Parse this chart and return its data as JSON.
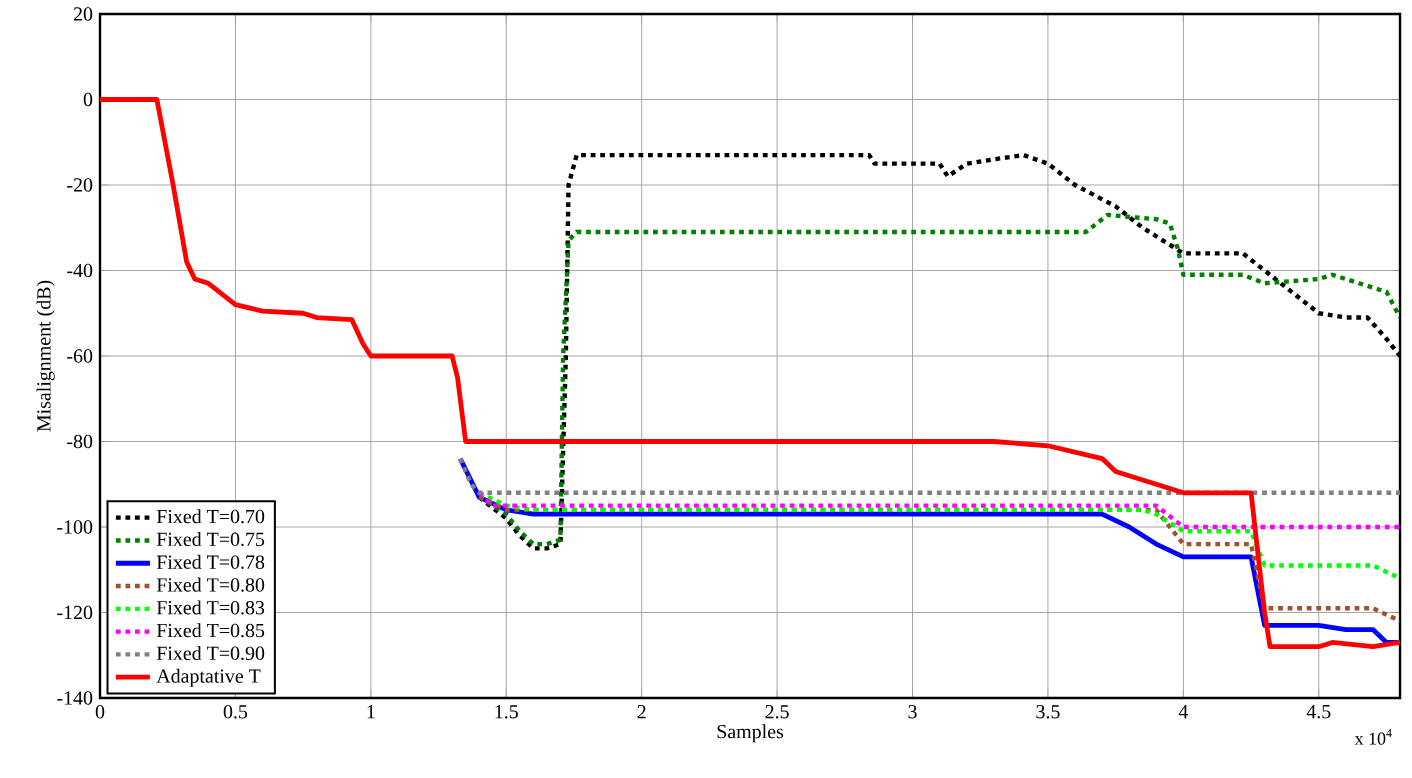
{
  "chart_data": {
    "type": "line",
    "xlabel": "Samples",
    "ylabel": "Misalignment (dB)",
    "annotations": [
      "x 10$^{4}$"
    ],
    "xlim": [
      0,
      4.8
    ],
    "ylim": [
      -140,
      20
    ],
    "xticks": [
      0,
      0.5,
      1,
      1.5,
      2,
      2.5,
      3,
      3.5,
      4,
      4.5
    ],
    "yticks": [
      -140,
      -120,
      -100,
      -80,
      -60,
      -40,
      -20,
      0,
      20
    ],
    "grid": true,
    "legend": "bottom left",
    "marker": "none",
    "series": [
      {
        "name": "Fixed T=0.70",
        "color": "#000000",
        "line_style": "dotted",
        "x": [
          1.4,
          1.5,
          1.55,
          1.6,
          1.65,
          1.7,
          1.72,
          1.73,
          1.76,
          2.84,
          2.86,
          3.1,
          3.13,
          3.2,
          3.3,
          3.41,
          3.5,
          3.6,
          3.75,
          3.85,
          4.0,
          4.22,
          4.3,
          4.4,
          4.5,
          4.6,
          4.68,
          4.75,
          4.8
        ],
        "values": [
          -93,
          -98,
          -102,
          -105,
          -105,
          -104,
          -60,
          -20,
          -13,
          -13,
          -15,
          -15,
          -18,
          -15,
          -14,
          -13,
          -15,
          -20,
          -25,
          -30,
          -36,
          -36,
          -40,
          -45,
          -50,
          -51,
          -51,
          -56,
          -60
        ]
      },
      {
        "name": "Fixed T=0.75",
        "color": "#008000",
        "line_style": "dotted",
        "x": [
          1.4,
          1.5,
          1.55,
          1.6,
          1.65,
          1.7,
          1.71,
          1.73,
          1.76,
          3.64,
          3.72,
          3.9,
          3.95,
          3.98,
          4.0,
          4.22,
          4.3,
          4.5,
          4.55,
          4.7,
          4.75,
          4.8
        ],
        "values": [
          -93,
          -97,
          -101,
          -104,
          -104,
          -103,
          -60,
          -33,
          -31,
          -31,
          -27,
          -28,
          -29,
          -35,
          -41,
          -41,
          -43,
          -42,
          -41,
          -44,
          -45,
          -51
        ]
      },
      {
        "name": "Fixed T=0.78",
        "color": "#0000ff",
        "line_style": "solid",
        "x": [
          1.33,
          1.4,
          1.5,
          1.6,
          3.7,
          3.8,
          3.9,
          4.0,
          4.25,
          4.3,
          4.5,
          4.6,
          4.7,
          4.75,
          4.8
        ],
        "values": [
          -84,
          -93,
          -96,
          -97,
          -97,
          -100,
          -104,
          -107,
          -107,
          -123,
          -123,
          -124,
          -124,
          -127,
          -127
        ]
      },
      {
        "name": "Fixed T=0.80",
        "color": "#a0522d",
        "line_style": "dotted",
        "x": [
          1.4,
          1.5,
          1.6,
          3.9,
          4.0,
          4.25,
          4.3,
          4.7,
          4.8
        ],
        "values": [
          -93,
          -96,
          -96,
          -96,
          -104,
          -104,
          -119,
          -119,
          -122
        ]
      },
      {
        "name": "Fixed T=0.83",
        "color": "#00ff00",
        "line_style": "dotted",
        "x": [
          1.4,
          1.5,
          1.6,
          3.85,
          3.9,
          4.0,
          4.25,
          4.3,
          4.7,
          4.8
        ],
        "values": [
          -92,
          -95,
          -96,
          -96,
          -97,
          -101,
          -101,
          -109,
          -109,
          -112
        ]
      },
      {
        "name": "Fixed T=0.85",
        "color": "#ff00ff",
        "line_style": "dotted",
        "x": [
          1.4,
          1.45,
          3.9,
          4.0,
          4.8
        ],
        "values": [
          -92,
          -95,
          -95,
          -100,
          -100
        ]
      },
      {
        "name": "Fixed T=0.90",
        "color": "#808080",
        "line_style": "dotted",
        "x": [
          1.33,
          1.37,
          1.4,
          4.8
        ],
        "values": [
          -84,
          -90,
          -92,
          -92
        ]
      },
      {
        "name": "Adaptative T",
        "color": "#ff0000",
        "line_style": "solid",
        "x": [
          0,
          0.21,
          0.27,
          0.32,
          0.35,
          0.4,
          0.5,
          0.6,
          0.75,
          0.8,
          0.93,
          0.97,
          1.0,
          1.3,
          1.32,
          1.35,
          3.3,
          3.5,
          3.7,
          3.75,
          3.9,
          4.0,
          4.25,
          4.3,
          4.32,
          4.5,
          4.55,
          4.7,
          4.8
        ],
        "values": [
          0,
          0,
          -20,
          -38,
          -42,
          -43,
          -48,
          -49.5,
          -50,
          -51,
          -51.5,
          -57,
          -60,
          -60,
          -65,
          -80,
          -80,
          -81,
          -84,
          -87,
          -90,
          -92,
          -92,
          -120,
          -128,
          -128,
          -127,
          -128,
          -127
        ]
      }
    ]
  }
}
